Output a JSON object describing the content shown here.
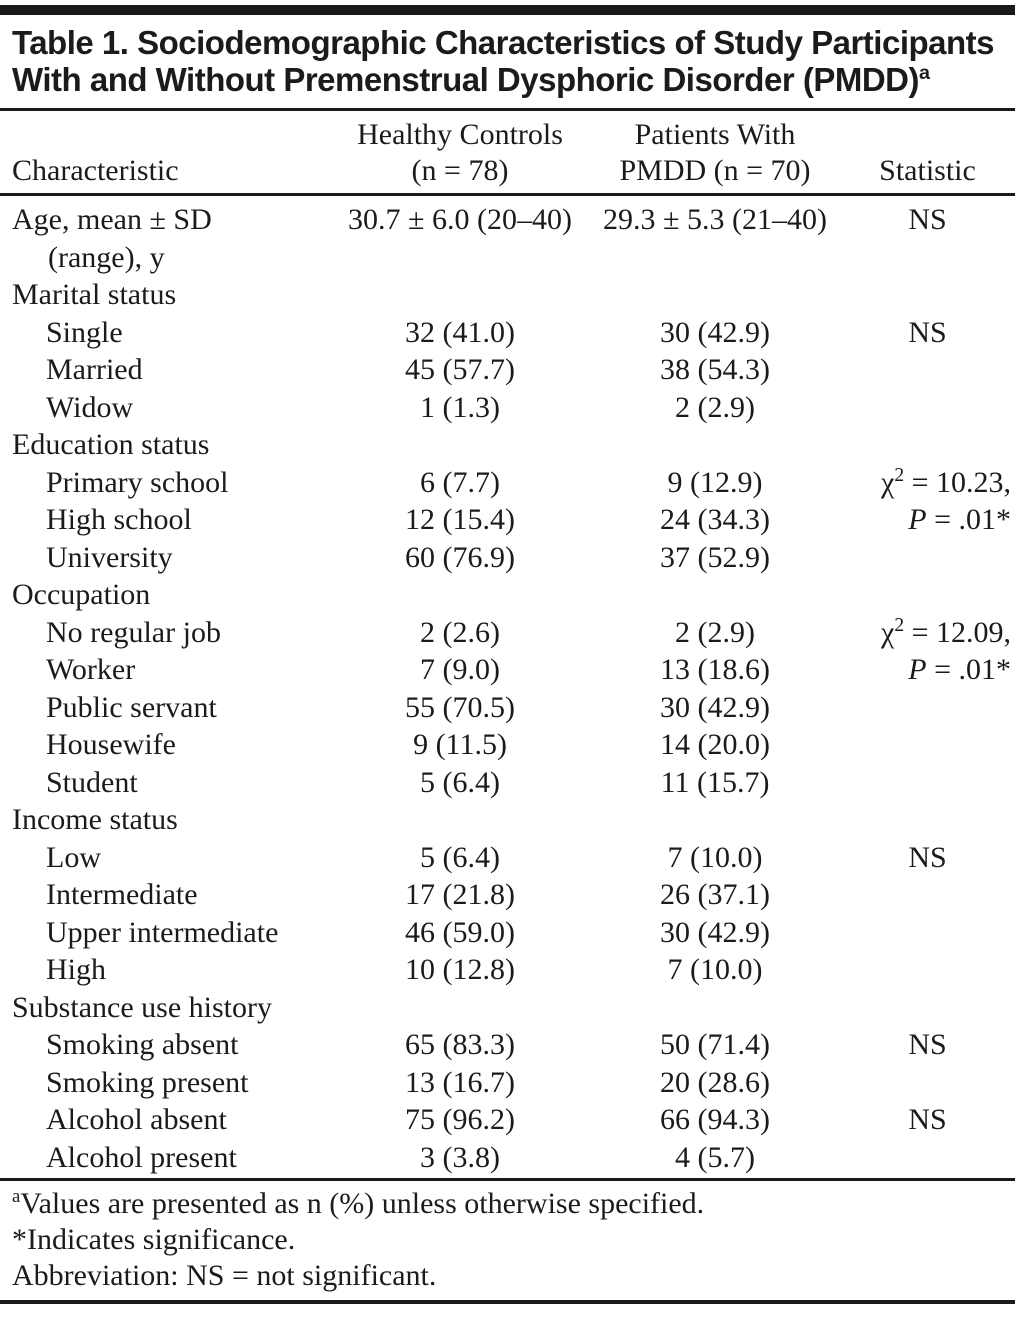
{
  "table": {
    "title": "Table 1. Sociodemographic Characteristics of Study Participants With and Without Premenstrual Dysphoric Disorder (PMDD)",
    "title_superscript": "a",
    "header": {
      "characteristic": "Characteristic",
      "healthy_controls_line1": "Healthy Controls",
      "healthy_controls_line2": "(n = 78)",
      "pmdd_line1": "Patients With",
      "pmdd_line2": "PMDD (n = 70)",
      "statistic": "Statistic"
    },
    "rows": [
      {
        "label": "Age, mean ± SD",
        "label2": "(range), y",
        "indent": 0,
        "healthy": "30.7 ± 6.0 (20–40)",
        "pmdd": "29.3 ± 5.3 (21–40)",
        "stat": "NS"
      },
      {
        "label": "Marital status",
        "indent": 0,
        "healthy": "",
        "pmdd": "",
        "stat": ""
      },
      {
        "label": "Single",
        "indent": 1,
        "healthy": "32 (41.0)",
        "pmdd": "30 (42.9)",
        "stat": "NS"
      },
      {
        "label": "Married",
        "indent": 1,
        "healthy": "45 (57.7)",
        "pmdd": "38 (54.3)",
        "stat": ""
      },
      {
        "label": "Widow",
        "indent": 1,
        "healthy": "1 (1.3)",
        "pmdd": "2 (2.9)",
        "stat": ""
      },
      {
        "label": "Education status",
        "indent": 0,
        "healthy": "",
        "pmdd": "",
        "stat": ""
      },
      {
        "label": "Primary school",
        "indent": 1,
        "healthy": "6 (7.7)",
        "pmdd": "9 (12.9)",
        "stat": {
          "align": "right",
          "parts": [
            {
              "t": "χ"
            },
            {
              "t": "2",
              "sup": true
            },
            {
              "t": " = 10.23,"
            }
          ]
        }
      },
      {
        "label": "High school",
        "indent": 1,
        "healthy": "12 (15.4)",
        "pmdd": "24 (34.3)",
        "stat": {
          "align": "right",
          "parts": [
            {
              "t": "P",
              "italic": true
            },
            {
              "t": " = .01*"
            }
          ]
        }
      },
      {
        "label": "University",
        "indent": 1,
        "healthy": "60 (76.9)",
        "pmdd": "37 (52.9)",
        "stat": ""
      },
      {
        "label": "Occupation",
        "indent": 0,
        "healthy": "",
        "pmdd": "",
        "stat": ""
      },
      {
        "label": "No regular job",
        "indent": 1,
        "healthy": "2 (2.6)",
        "pmdd": "2 (2.9)",
        "stat": {
          "align": "right",
          "parts": [
            {
              "t": "χ"
            },
            {
              "t": "2",
              "sup": true
            },
            {
              "t": " = 12.09,"
            }
          ]
        }
      },
      {
        "label": "Worker",
        "indent": 1,
        "healthy": "7 (9.0)",
        "pmdd": "13 (18.6)",
        "stat": {
          "align": "right",
          "parts": [
            {
              "t": "P",
              "italic": true
            },
            {
              "t": " = .01*"
            }
          ]
        }
      },
      {
        "label": "Public servant",
        "indent": 1,
        "healthy": "55 (70.5)",
        "pmdd": "30 (42.9)",
        "stat": ""
      },
      {
        "label": "Housewife",
        "indent": 1,
        "healthy": "9 (11.5)",
        "pmdd": "14 (20.0)",
        "stat": ""
      },
      {
        "label": "Student",
        "indent": 1,
        "healthy": "5 (6.4)",
        "pmdd": "11 (15.7)",
        "stat": ""
      },
      {
        "label": "Income status",
        "indent": 0,
        "healthy": "",
        "pmdd": "",
        "stat": ""
      },
      {
        "label": "Low",
        "indent": 1,
        "healthy": "5 (6.4)",
        "pmdd": "7 (10.0)",
        "stat": "NS"
      },
      {
        "label": "Intermediate",
        "indent": 1,
        "healthy": "17 (21.8)",
        "pmdd": "26 (37.1)",
        "stat": ""
      },
      {
        "label": "Upper intermediate",
        "indent": 1,
        "healthy": "46 (59.0)",
        "pmdd": "30 (42.9)",
        "stat": ""
      },
      {
        "label": "High",
        "indent": 1,
        "healthy": "10 (12.8)",
        "pmdd": "7 (10.0)",
        "stat": ""
      },
      {
        "label": "Substance use history",
        "indent": 0,
        "healthy": "",
        "pmdd": "",
        "stat": ""
      },
      {
        "label": "Smoking absent",
        "indent": 1,
        "healthy": "65 (83.3)",
        "pmdd": "50 (71.4)",
        "stat": "NS"
      },
      {
        "label": "Smoking present",
        "indent": 1,
        "healthy": "13 (16.7)",
        "pmdd": "20 (28.6)",
        "stat": ""
      },
      {
        "label": "Alcohol absent",
        "indent": 1,
        "healthy": "75 (96.2)",
        "pmdd": "66 (94.3)",
        "stat": "NS"
      },
      {
        "label": "Alcohol present",
        "indent": 1,
        "healthy": "3 (3.8)",
        "pmdd": "4 (5.7)",
        "stat": ""
      }
    ],
    "footnotes": {
      "a_sup": "a",
      "a_text": "Values are presented as n (%) unless otherwise specified.",
      "significance": "*Indicates significance.",
      "abbreviation": "Abbreviation: NS = not significant."
    }
  }
}
